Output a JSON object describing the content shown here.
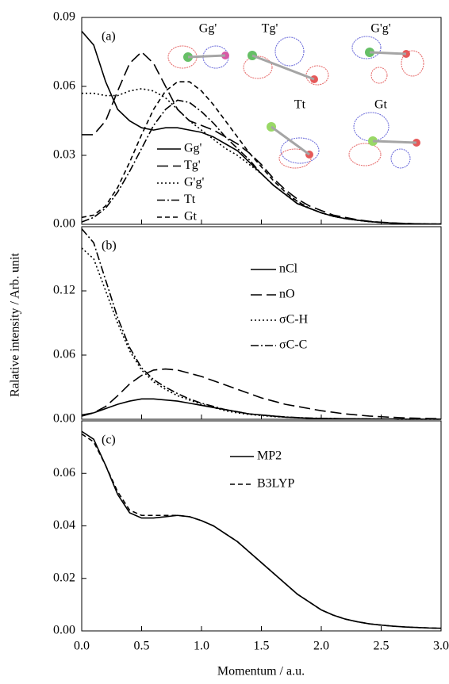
{
  "chart_data": [
    {
      "type": "line",
      "panel_label": "(a)",
      "x": [
        0,
        0.1,
        0.2,
        0.3,
        0.4,
        0.5,
        0.6,
        0.7,
        0.8,
        0.9,
        1.0,
        1.1,
        1.2,
        1.3,
        1.4,
        1.5,
        1.6,
        1.7,
        1.8,
        1.9,
        2.0,
        2.1,
        2.2,
        2.3,
        2.4,
        2.5,
        2.6,
        2.7,
        2.8,
        2.9,
        3.0
      ],
      "xlim": [
        0,
        3.0
      ],
      "ylim": [
        0,
        0.09
      ],
      "yticks": [
        {
          "value": 0,
          "label": "0.00"
        },
        0.03,
        0.06,
        0.09
      ],
      "legend": "lower-left",
      "annotations": [
        "Gg'",
        "Tg'",
        "G'g'",
        "Tt",
        "Gt"
      ],
      "series": [
        {
          "name": "Gg'",
          "color": "#000000",
          "style": "solid",
          "values": [
            0.084,
            0.078,
            0.062,
            0.05,
            0.045,
            0.042,
            0.041,
            0.042,
            0.042,
            0.041,
            0.04,
            0.038,
            0.035,
            0.032,
            0.027,
            0.022,
            0.017,
            0.013,
            0.009,
            0.007,
            0.005,
            0.0035,
            0.0025,
            0.0018,
            0.0012,
            0.0008,
            0.0005,
            0.0003,
            0.0002,
            0.0001,
            0.0001
          ]
        },
        {
          "name": "Tg'",
          "color": "#000000",
          "style": "long-dash",
          "values": [
            0.039,
            0.039,
            0.045,
            0.058,
            0.07,
            0.075,
            0.07,
            0.06,
            0.05,
            0.045,
            0.043,
            0.041,
            0.038,
            0.035,
            0.031,
            0.026,
            0.02,
            0.015,
            0.011,
            0.008,
            0.006,
            0.004,
            0.003,
            0.002,
            0.0013,
            0.0009,
            0.0006,
            0.0004,
            0.0002,
            0.0001,
            0.0001
          ]
        },
        {
          "name": "G'g'",
          "color": "#000000",
          "style": "dot",
          "values": [
            0.057,
            0.057,
            0.056,
            0.056,
            0.058,
            0.059,
            0.058,
            0.055,
            0.05,
            0.045,
            0.041,
            0.037,
            0.033,
            0.03,
            0.026,
            0.022,
            0.017,
            0.013,
            0.01,
            0.007,
            0.005,
            0.0035,
            0.0025,
            0.0018,
            0.0012,
            0.0008,
            0.0005,
            0.0003,
            0.0002,
            0.0001,
            0.0001
          ]
        },
        {
          "name": "Tt",
          "color": "#000000",
          "style": "dash-dot",
          "values": [
            0.001,
            0.003,
            0.007,
            0.014,
            0.023,
            0.033,
            0.043,
            0.05,
            0.054,
            0.053,
            0.049,
            0.044,
            0.038,
            0.033,
            0.028,
            0.022,
            0.017,
            0.013,
            0.009,
            0.007,
            0.005,
            0.0035,
            0.0025,
            0.0018,
            0.0012,
            0.0008,
            0.0005,
            0.0003,
            0.0002,
            0.0001,
            0.0001
          ]
        },
        {
          "name": "Gt",
          "color": "#000000",
          "style": "dash",
          "values": [
            0.003,
            0.004,
            0.008,
            0.016,
            0.027,
            0.039,
            0.05,
            0.058,
            0.062,
            0.062,
            0.058,
            0.052,
            0.045,
            0.038,
            0.031,
            0.025,
            0.019,
            0.014,
            0.01,
            0.007,
            0.005,
            0.0035,
            0.0025,
            0.0018,
            0.0012,
            0.0008,
            0.0005,
            0.0003,
            0.0002,
            0.0001,
            0.0001
          ]
        }
      ]
    },
    {
      "type": "line",
      "panel_label": "(b)",
      "ylabel": "Ralative intensity / Arb. unit",
      "x": [
        0,
        0.1,
        0.2,
        0.3,
        0.4,
        0.5,
        0.6,
        0.7,
        0.8,
        0.9,
        1.0,
        1.1,
        1.2,
        1.3,
        1.4,
        1.5,
        1.6,
        1.7,
        1.8,
        1.9,
        2.0,
        2.1,
        2.2,
        2.3,
        2.4,
        2.5,
        2.6,
        2.7,
        2.8,
        2.9,
        3.0
      ],
      "xlim": [
        0,
        3.0
      ],
      "ylim": [
        0,
        0.18
      ],
      "yticks": [
        {
          "value": 0,
          "label": "0.00"
        },
        0.06,
        0.12
      ],
      "legend": "center-right",
      "series": [
        {
          "name": "nCl",
          "color": "#000000",
          "style": "solid",
          "values": [
            0.004,
            0.006,
            0.01,
            0.014,
            0.017,
            0.019,
            0.019,
            0.018,
            0.017,
            0.015,
            0.013,
            0.011,
            0.009,
            0.007,
            0.005,
            0.004,
            0.003,
            0.002,
            0.0015,
            0.001,
            0.0008,
            0.0006,
            0.0005,
            0.0004,
            0.0003,
            0.0002,
            0.0002,
            0.0001,
            0.0001,
            0.0001,
            0.0001
          ]
        },
        {
          "name": "nO",
          "color": "#000000",
          "style": "long-dash",
          "values": [
            0.003,
            0.006,
            0.012,
            0.022,
            0.033,
            0.041,
            0.046,
            0.047,
            0.046,
            0.043,
            0.04,
            0.036,
            0.032,
            0.028,
            0.024,
            0.02,
            0.017,
            0.014,
            0.012,
            0.01,
            0.008,
            0.0065,
            0.005,
            0.004,
            0.003,
            0.0024,
            0.0018,
            0.0013,
            0.001,
            0.0007,
            0.0005
          ]
        },
        {
          "name": "σC-H",
          "color": "#000000",
          "style": "dot",
          "values": [
            0.16,
            0.15,
            0.12,
            0.09,
            0.064,
            0.046,
            0.035,
            0.028,
            0.022,
            0.018,
            0.014,
            0.011,
            0.008,
            0.006,
            0.0045,
            0.0035,
            0.0025,
            0.002,
            0.0015,
            0.001,
            0.0008,
            0.0006,
            0.0005,
            0.0004,
            0.0003,
            0.0002,
            0.0002,
            0.0001,
            0.0001,
            0.0001,
            0.0001
          ]
        },
        {
          "name": "σC-C",
          "color": "#000000",
          "style": "dash-dot",
          "values": [
            0.178,
            0.165,
            0.13,
            0.095,
            0.067,
            0.048,
            0.037,
            0.03,
            0.024,
            0.019,
            0.015,
            0.012,
            0.009,
            0.007,
            0.005,
            0.004,
            0.003,
            0.0022,
            0.0016,
            0.0012,
            0.0009,
            0.0007,
            0.0005,
            0.0004,
            0.0003,
            0.0002,
            0.0002,
            0.0001,
            0.0001,
            0.0001,
            0.0001
          ]
        }
      ]
    },
    {
      "type": "line",
      "panel_label": "(c)",
      "xlabel": "Momentum / a.u.",
      "x": [
        0,
        0.1,
        0.2,
        0.3,
        0.4,
        0.5,
        0.6,
        0.7,
        0.8,
        0.9,
        1.0,
        1.1,
        1.2,
        1.3,
        1.4,
        1.5,
        1.6,
        1.7,
        1.8,
        1.9,
        2.0,
        2.1,
        2.2,
        2.3,
        2.4,
        2.5,
        2.6,
        2.7,
        2.8,
        2.9,
        3.0
      ],
      "xlim": [
        0,
        3.0
      ],
      "ylim": [
        0,
        0.08
      ],
      "xticks": [
        {
          "value": 0,
          "label": "0.0"
        },
        0.5,
        {
          "value": 1,
          "label": "1.0"
        },
        1.5,
        {
          "value": 2,
          "label": "2.0"
        },
        2.5,
        {
          "value": 3,
          "label": "3.0"
        }
      ],
      "yticks": [
        {
          "value": 0,
          "label": "0.00"
        },
        0.02,
        0.04,
        0.06
      ],
      "legend": "upper-center",
      "series": [
        {
          "name": "MP2",
          "color": "#000000",
          "style": "solid",
          "values": [
            0.076,
            0.073,
            0.063,
            0.052,
            0.045,
            0.043,
            0.043,
            0.0435,
            0.044,
            0.0435,
            0.042,
            0.04,
            0.037,
            0.034,
            0.03,
            0.026,
            0.022,
            0.018,
            0.014,
            0.011,
            0.008,
            0.006,
            0.0045,
            0.0035,
            0.0027,
            0.0022,
            0.0018,
            0.0015,
            0.0013,
            0.0011,
            0.001
          ]
        },
        {
          "name": "B3LYP",
          "color": "#000000",
          "style": "dash",
          "values": [
            0.075,
            0.072,
            0.063,
            0.053,
            0.046,
            0.044,
            0.044,
            0.044,
            0.044,
            0.0435,
            0.042,
            0.04,
            0.037,
            0.034,
            0.03,
            0.026,
            0.022,
            0.018,
            0.014,
            0.011,
            0.008,
            0.006,
            0.0045,
            0.0035,
            0.0027,
            0.0022,
            0.0018,
            0.0015,
            0.0013,
            0.0011,
            0.001
          ]
        }
      ]
    }
  ]
}
